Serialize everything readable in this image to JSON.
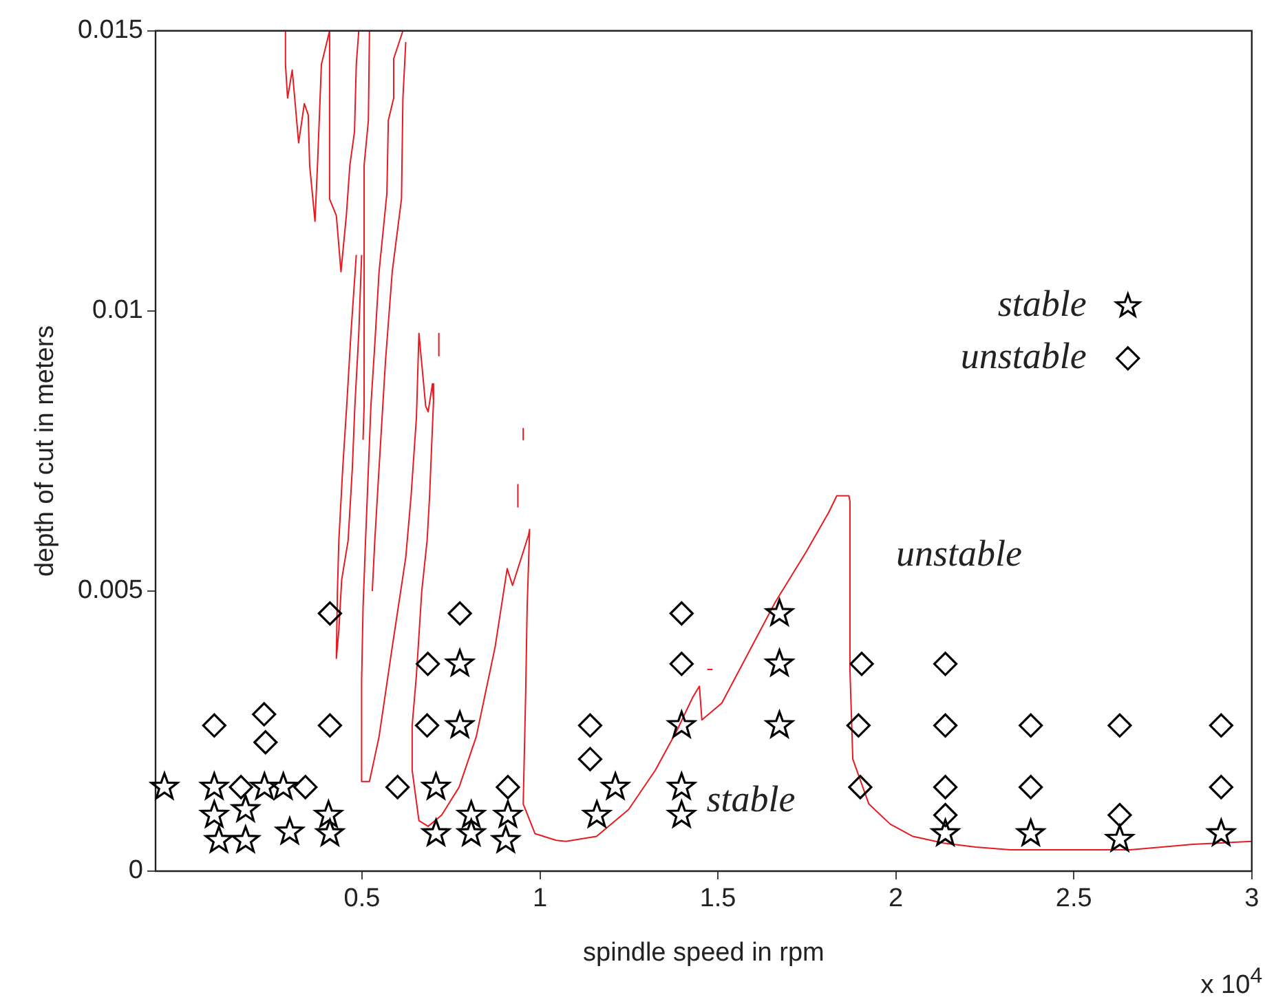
{
  "chart_data": {
    "type": "scatter",
    "xlabel": "spindle speed in rpm",
    "ylabel": "depth of cut in meters",
    "xlim": [
      -0.08,
      3
    ],
    "ylim": [
      0,
      0.015
    ],
    "xticks": [
      0.5,
      1,
      1.5,
      2,
      2.5,
      3
    ],
    "yticks": [
      0,
      0.005,
      0.01,
      0.015
    ],
    "grid": false,
    "legend": "top right",
    "annotations": [
      "unstable",
      "stable",
      "x 10$^{4}$"
    ],
    "series": [
      {
        "name": "stable",
        "marker": "star",
        "color": "#000000",
        "x": [
          -0.055,
          0.085,
          0.085,
          0.098,
          0.173,
          0.173,
          0.226,
          0.279,
          0.297,
          0.406,
          0.41,
          0.708,
          0.775,
          0.775,
          0.708,
          0.807,
          0.807,
          0.91,
          0.904,
          1.16,
          1.212,
          1.398,
          1.398,
          1.398,
          1.673,
          1.673,
          1.673,
          2.139,
          2.379,
          2.629,
          2.914
        ],
        "values": [
          0.0015,
          0.0015,
          0.001,
          0.00055,
          0.0011,
          0.00055,
          0.0015,
          0.0015,
          0.0007,
          0.001,
          0.00067,
          0.0015,
          0.0037,
          0.0026,
          0.00067,
          0.001,
          0.00067,
          0.001,
          0.00055,
          0.001,
          0.0015,
          0.0026,
          0.0015,
          0.001,
          0.0046,
          0.0037,
          0.0026,
          0.00067,
          0.00067,
          0.00057,
          0.00067
        ]
      },
      {
        "name": "unstable",
        "marker": "diamond",
        "color": "#000000",
        "x": [
          0.085,
          0.225,
          0.229,
          0.16,
          0.341,
          0.41,
          0.41,
          0.6,
          0.685,
          0.683,
          0.775,
          0.91,
          1.141,
          1.141,
          1.398,
          1.398,
          1.904,
          1.895,
          1.9,
          2.139,
          2.139,
          2.139,
          2.139,
          2.379,
          2.379,
          2.629,
          2.629,
          2.914,
          2.914
        ],
        "values": [
          0.0026,
          0.0028,
          0.0023,
          0.0015,
          0.0015,
          0.0046,
          0.0026,
          0.0015,
          0.0037,
          0.0026,
          0.0046,
          0.0015,
          0.0026,
          0.002,
          0.0046,
          0.0037,
          0.0037,
          0.0026,
          0.0015,
          0.0037,
          0.0026,
          0.0015,
          0.001,
          0.0026,
          0.0015,
          0.0026,
          0.001,
          0.0026,
          0.0015
        ]
      },
      {
        "type": "line",
        "marker": "none",
        "color": "#e8191f",
        "x": [
          0.285,
          0.285,
          0.291,
          0.304,
          0.311,
          0.322,
          0.338,
          0.349,
          0.353,
          0.368,
          0.375,
          0.386,
          0.409
        ],
        "values": [
          0.015,
          0.0144,
          0.0138,
          0.0143,
          0.0138,
          0.013,
          0.0137,
          0.0135,
          0.0126,
          0.0116,
          0.0126,
          0.0144,
          0.015
        ]
      },
      {
        "type": "line",
        "marker": "none",
        "color": "#e8191f",
        "x": [
          0.409,
          0.409,
          0.428,
          0.441,
          0.456,
          0.466,
          0.479,
          0.484,
          0.491
        ],
        "values": [
          0.015,
          0.012,
          0.0117,
          0.0107,
          0.0117,
          0.0126,
          0.0132,
          0.0144,
          0.015
        ]
      },
      {
        "type": "line",
        "marker": "none",
        "color": "#e8191f",
        "x": [
          0.484,
          0.469,
          0.458,
          0.446,
          0.435,
          0.431,
          0.428,
          0.435,
          0.443,
          0.461,
          0.473,
          0.48,
          0.491,
          0.499
        ],
        "values": [
          0.011,
          0.0096,
          0.0084,
          0.0072,
          0.0059,
          0.005,
          0.0038,
          0.0043,
          0.0052,
          0.0059,
          0.0072,
          0.0083,
          0.0096,
          0.011
        ]
      },
      {
        "type": "line",
        "marker": "none",
        "color": "#e8191f",
        "x": [
          0.521,
          0.518,
          0.506,
          0.506,
          0.503
        ],
        "values": [
          0.015,
          0.0134,
          0.0126,
          0.0083,
          0.0077
        ]
      },
      {
        "type": "line",
        "marker": "none",
        "color": "#e8191f",
        "x": [
          0.623,
          0.615,
          0.611,
          0.585,
          0.566,
          0.548,
          0.536,
          0.529
        ],
        "values": [
          0.0148,
          0.0138,
          0.012,
          0.0107,
          0.0091,
          0.0072,
          0.0059,
          0.005
        ]
      },
      {
        "type": "line",
        "marker": "none",
        "color": "#e8191f",
        "x": [
          0.615,
          0.589,
          0.589,
          0.574,
          0.57,
          0.548,
          0.536,
          0.525,
          0.51,
          0.503,
          0.499,
          0.499,
          0.521,
          0.548,
          0.585,
          0.623,
          0.638,
          0.653,
          0.66,
          0.679,
          0.686,
          0.698,
          0.701,
          0.69,
          0.683,
          0.668,
          0.653,
          0.641,
          0.641,
          0.66,
          0.686,
          0.724,
          0.773,
          0.821,
          0.874,
          0.908,
          0.923,
          0.968,
          0.971,
          0.964,
          0.96,
          0.953,
          0.986,
          1.046,
          1.073,
          1.159,
          1.249,
          1.324,
          1.384,
          1.429,
          1.448,
          1.455,
          1.511,
          1.586,
          1.661,
          1.748,
          1.811,
          1.834,
          1.868,
          1.871,
          1.871,
          1.879,
          1.924,
          1.984,
          2.048,
          2.134,
          2.224,
          2.321,
          2.659,
          2.835,
          3
        ],
        "values": [
          0.015,
          0.0145,
          0.0138,
          0.0134,
          0.0121,
          0.0107,
          0.0094,
          0.0083,
          0.0059,
          0.0047,
          0.0034,
          0.0016,
          0.0016,
          0.0024,
          0.004,
          0.0056,
          0.0067,
          0.0081,
          0.0096,
          0.0083,
          0.0082,
          0.0087,
          0.0084,
          0.0067,
          0.0059,
          0.005,
          0.0035,
          0.0026,
          0.0018,
          0.0009,
          0.0008,
          0.001,
          0.0015,
          0.0024,
          0.004,
          0.0054,
          0.0051,
          0.006,
          0.0061,
          0.0047,
          0.0032,
          0.0012,
          0.00067,
          0.00055,
          0.00053,
          0.00062,
          0.0011,
          0.0018,
          0.0025,
          0.0031,
          0.0033,
          0.0027,
          0.003,
          0.0039,
          0.0048,
          0.0057,
          0.0064,
          0.0067,
          0.0067,
          0.0066,
          0.0036,
          0.002,
          0.0012,
          0.00084,
          0.00062,
          0.0005,
          0.00043,
          0.00038,
          0.00038,
          0.00048,
          0.00053
        ]
      },
      {
        "type": "line",
        "marker": "none",
        "color": "#e8191f",
        "x": [
          0.716,
          0.716
        ],
        "values": [
          0.0096,
          0.0092
        ]
      },
      {
        "type": "line",
        "marker": "none",
        "color": "#e8191f",
        "x": [
          0.953,
          0.953
        ],
        "values": [
          0.0079,
          0.0077
        ]
      },
      {
        "type": "line",
        "marker": "none",
        "color": "#e8191f",
        "x": [
          0.938,
          0.938
        ],
        "values": [
          0.0069,
          0.0065
        ]
      },
      {
        "type": "line",
        "marker": "none",
        "color": "#e8191f",
        "x": [
          1.47,
          1.485
        ],
        "values": [
          0.0036,
          0.0036
        ]
      }
    ]
  }
}
